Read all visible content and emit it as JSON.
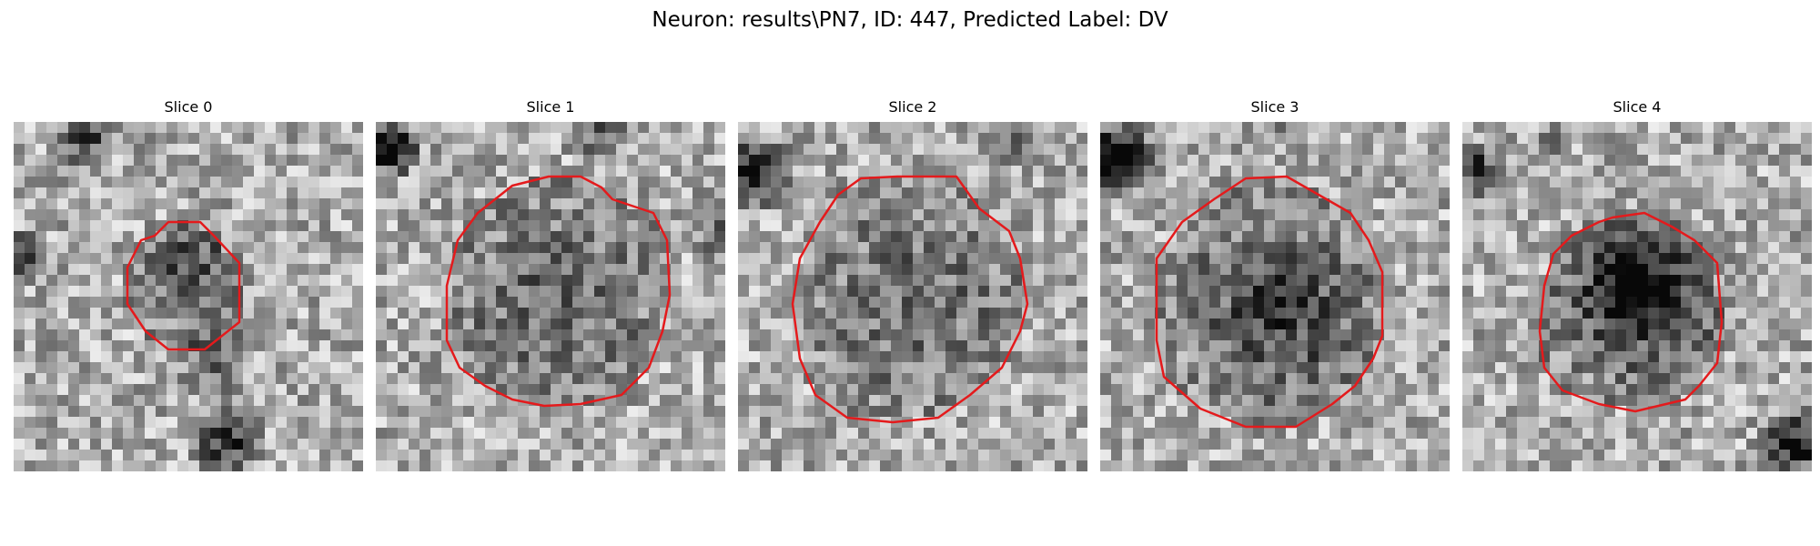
{
  "figure": {
    "title": "Neuron: results\\PN7, ID: 447, Predicted Label: DV"
  },
  "panels": [
    {
      "title": "Slice 0",
      "blob_darkness": 0.18,
      "contour_color": "#e41a1c"
    },
    {
      "title": "Slice 1",
      "blob_darkness": 0.12,
      "contour_color": "#e41a1c"
    },
    {
      "title": "Slice 2",
      "blob_darkness": 0.1,
      "contour_color": "#e41a1c"
    },
    {
      "title": "Slice 3",
      "blob_darkness": 0.22,
      "contour_color": "#e41a1c"
    },
    {
      "title": "Slice 4",
      "blob_darkness": 0.3,
      "contour_color": "#e41a1c"
    }
  ],
  "colors": {
    "contour": "#e41a1c",
    "background": "#ffffff"
  }
}
